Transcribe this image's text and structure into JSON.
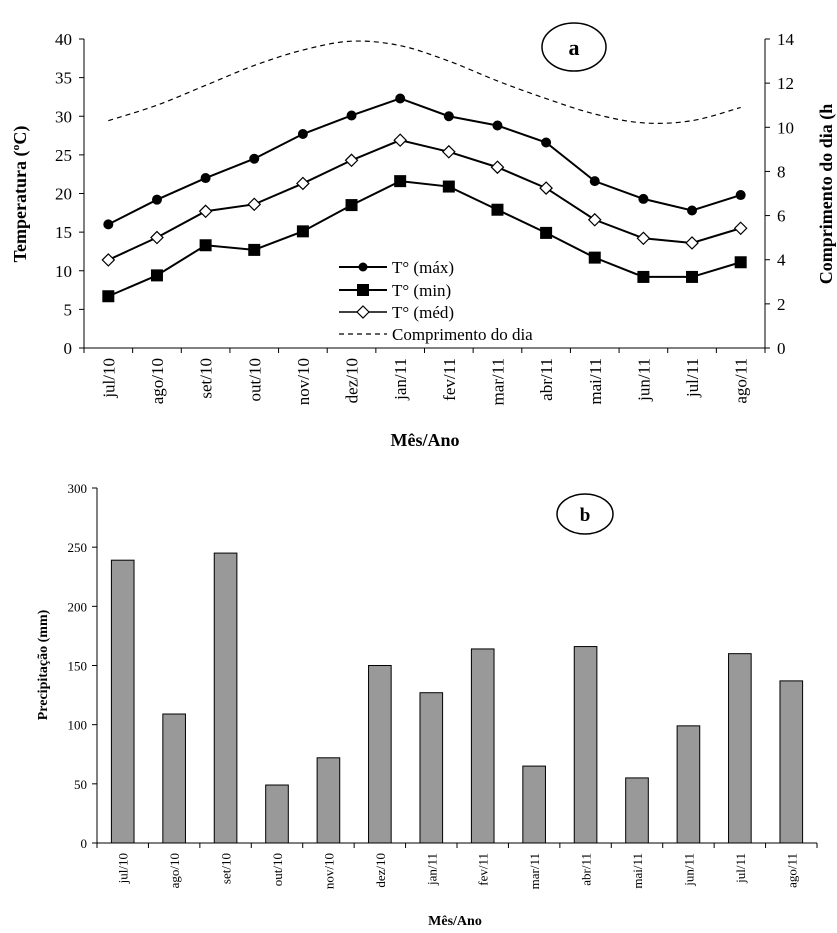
{
  "chart_data": [
    {
      "type": "line",
      "panel_label": "a",
      "categories": [
        "jul/10",
        "ago/10",
        "set/10",
        "out/10",
        "nov/10",
        "dez/10",
        "jan/11",
        "fev/11",
        "mar/11",
        "abr/11",
        "mai/11",
        "jun/11",
        "jul/11",
        "ago/11"
      ],
      "xlabel": "Mês/Ano",
      "ylabel": "Temperatura (ºC)",
      "ylabel_right": "Comprimento do dia (h",
      "ylim": [
        0,
        40
      ],
      "ylim_right": [
        0,
        14
      ],
      "yticks": [
        "0",
        "5",
        "10",
        "15",
        "20",
        "25",
        "30",
        "35",
        "40"
      ],
      "yticks_right": [
        "0",
        "2",
        "4",
        "6",
        "8",
        "10",
        "12",
        "14"
      ],
      "legend_position": "center",
      "series": [
        {
          "name": "T° (máx)",
          "marker": "circle",
          "axis": "left",
          "values": [
            16.0,
            19.2,
            22.0,
            24.5,
            27.7,
            30.1,
            32.3,
            30.0,
            28.8,
            26.6,
            21.6,
            19.3,
            17.8,
            19.8
          ]
        },
        {
          "name": "T° (min)",
          "marker": "square",
          "axis": "left",
          "values": [
            6.7,
            9.4,
            13.3,
            12.7,
            15.1,
            18.5,
            21.6,
            20.9,
            17.9,
            14.9,
            11.7,
            9.2,
            9.2,
            11.1
          ]
        },
        {
          "name": "T° (méd)",
          "marker": "diamond",
          "axis": "left",
          "values": [
            11.4,
            14.3,
            17.7,
            18.6,
            21.3,
            24.3,
            26.9,
            25.4,
            23.4,
            20.7,
            16.6,
            14.2,
            13.6,
            15.5
          ]
        },
        {
          "name": "Comprimento do dia",
          "marker": "none",
          "dash": true,
          "axis": "right",
          "values": [
            10.3,
            11.0,
            11.9,
            12.8,
            13.5,
            13.9,
            13.7,
            13.0,
            12.1,
            11.3,
            10.6,
            10.2,
            10.3,
            10.9
          ]
        }
      ]
    },
    {
      "type": "bar",
      "panel_label": "b",
      "categories": [
        "jul/10",
        "ago/10",
        "set/10",
        "out/10",
        "nov/10",
        "dez/10",
        "jan/11",
        "fev/11",
        "mar/11",
        "abr/11",
        "mai/11",
        "jun/11",
        "jul/11",
        "ago/11"
      ],
      "values": [
        239,
        109,
        245,
        49,
        72,
        150,
        127,
        164,
        65,
        166,
        55,
        99,
        160,
        137
      ],
      "xlabel": "Mês/Ano",
      "ylabel": "Precipitação (mm)",
      "ylim": [
        0,
        300
      ],
      "yticks": [
        "0",
        "50",
        "100",
        "150",
        "200",
        "250",
        "300"
      ],
      "bar_color": "#999999"
    }
  ]
}
